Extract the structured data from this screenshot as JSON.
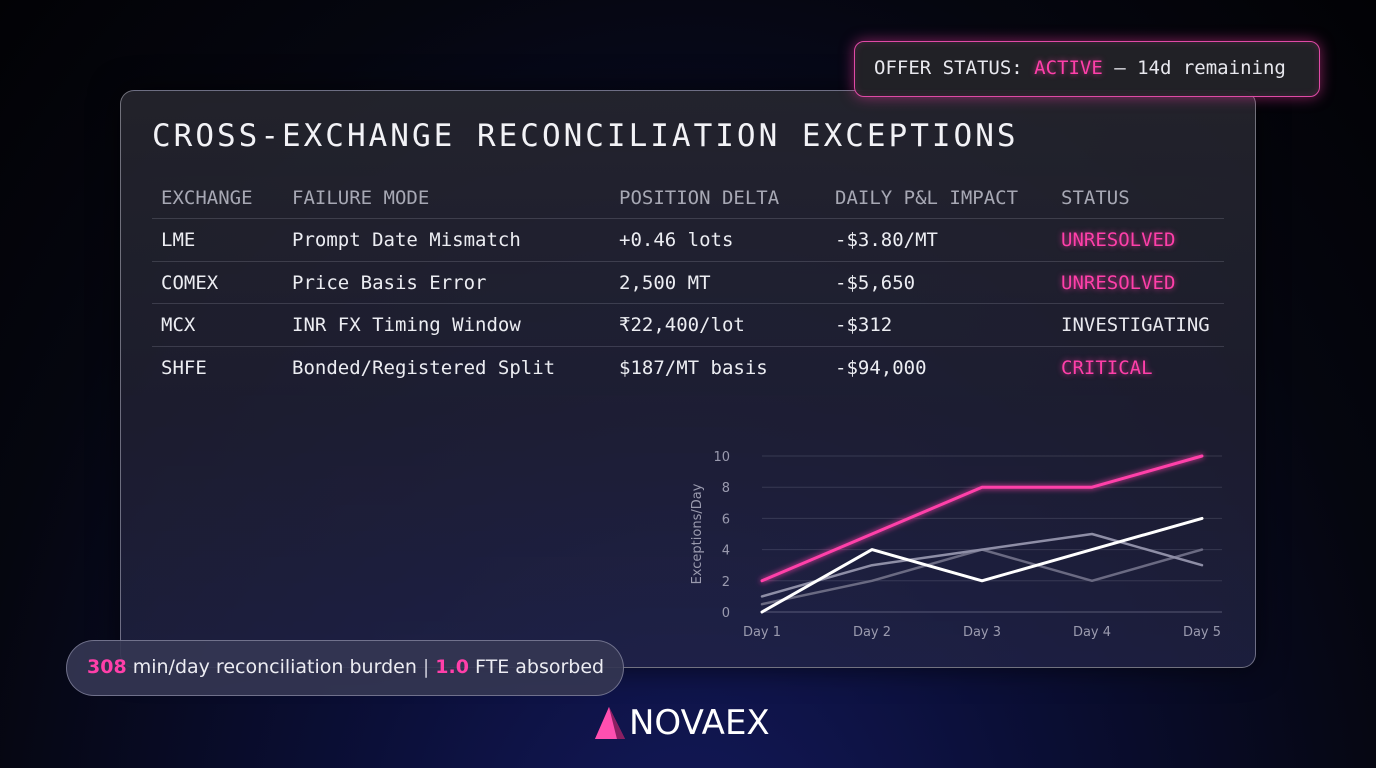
{
  "offer": {
    "prefix": "OFFER STATUS: ",
    "status": "ACTIVE",
    "suffix": " — 14d remaining"
  },
  "title": "CROSS-EXCHANGE RECONCILIATION EXCEPTIONS",
  "table": {
    "headers": [
      "EXCHANGE",
      "FAILURE MODE",
      "POSITION DELTA",
      "DAILY P&L IMPACT",
      "STATUS"
    ],
    "rows": [
      [
        "LME",
        "Prompt Date Mismatch",
        "+0.46 lots",
        "-$3.80/MT",
        "UNRESOLVED"
      ],
      [
        "COMEX",
        "Price Basis Error",
        "2,500 MT",
        "-$5,650",
        "UNRESOLVED"
      ],
      [
        "MCX",
        "INR FX Timing Window",
        "₹22,400/lot",
        "-$312",
        "INVESTIGATING"
      ],
      [
        "SHFE",
        "Bonded/Registered Split",
        "$187/MT basis",
        "-$94,000",
        "CRITICAL"
      ]
    ],
    "status_alert": [
      true,
      true,
      false,
      true
    ]
  },
  "burden": {
    "minutes": "308",
    "minutes_label": "min/day reconciliation burden",
    "separator": "|",
    "fte": "1.0",
    "fte_label": "FTE absorbed"
  },
  "brand": {
    "name": "NOVAEX"
  },
  "colors": {
    "accent": "#ff3fa9",
    "series": [
      "#ff3fa9",
      "#ffffff",
      "#8e8ea6",
      "#6a6a82"
    ]
  },
  "chart_data": {
    "type": "line",
    "x": [
      "Day 1",
      "Day 2",
      "Day 3",
      "Day 4",
      "Day 5"
    ],
    "ylabel": "Exceptions/Day",
    "ylim": [
      0,
      10
    ],
    "yticks": [
      0,
      2,
      4,
      6,
      8,
      10
    ],
    "grid": true,
    "series": [
      {
        "values": [
          2,
          5,
          8,
          8,
          10
        ]
      },
      {
        "values": [
          0,
          4,
          2,
          4,
          6
        ]
      },
      {
        "values": [
          1,
          3,
          4,
          5,
          3
        ]
      },
      {
        "values": [
          0.5,
          2,
          4,
          2,
          4
        ]
      }
    ]
  }
}
